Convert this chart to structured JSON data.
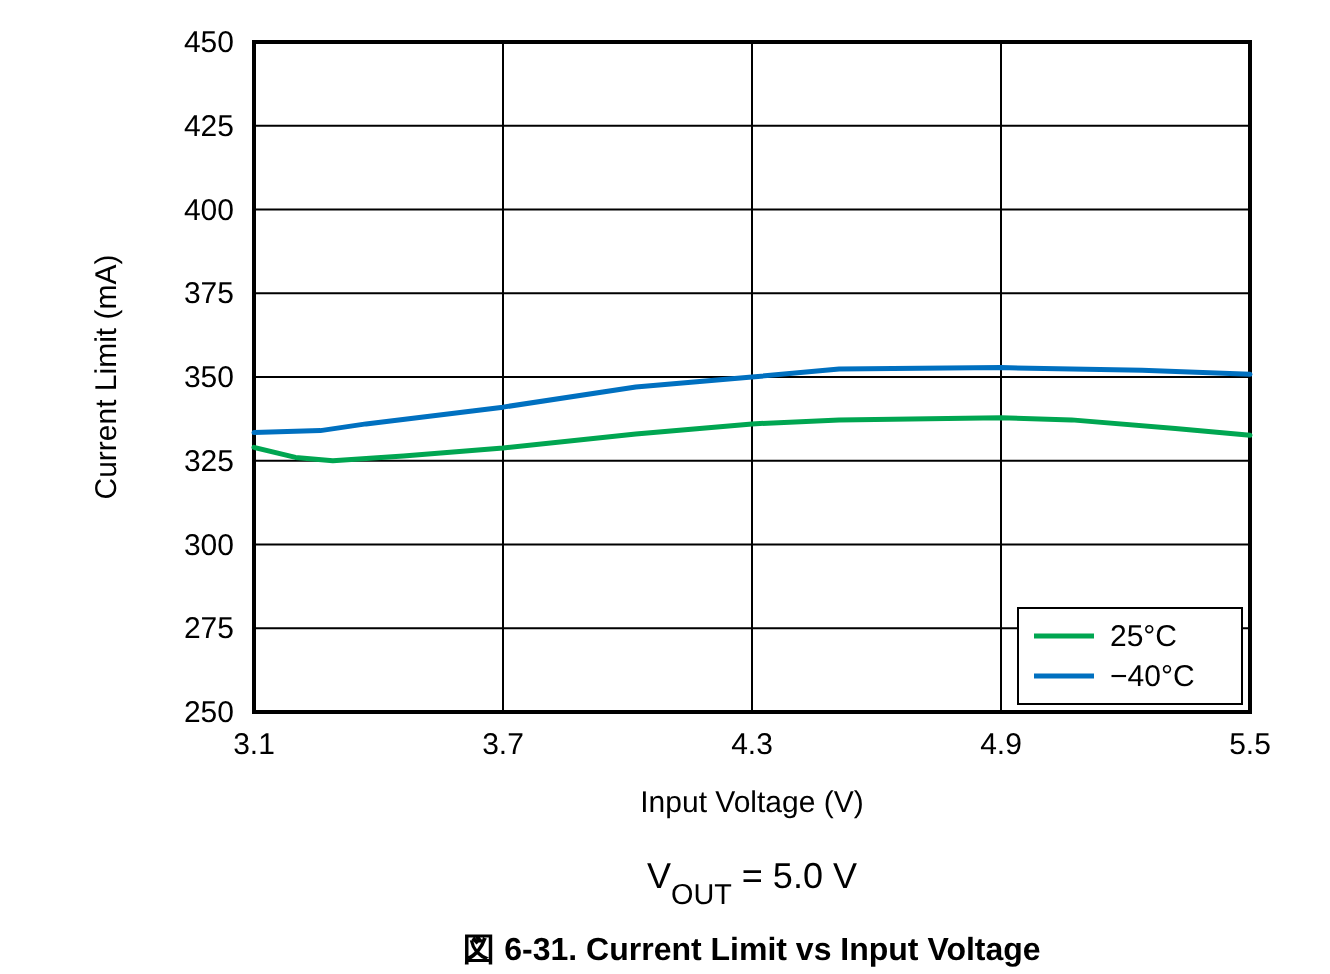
{
  "chart_data": {
    "type": "line",
    "title": "図 6-31. Current Limit vs Input Voltage",
    "xlabel": "Input Voltage (V)",
    "ylabel": "Current Limit (mA)",
    "annotations": [
      "V$_{OUT}$ = 5.0 V"
    ],
    "xlim": [
      3.1,
      5.5
    ],
    "xticks": [
      3.1,
      3.7,
      4.3,
      4.9,
      5.5
    ],
    "ylim": [
      250,
      450
    ],
    "yticks": [
      250,
      275,
      300,
      325,
      350,
      375,
      400,
      425,
      450
    ],
    "grid": true,
    "legend": "bottom right",
    "line_style": "solid",
    "marker": "none",
    "series": [
      {
        "name": "25°C",
        "color": "#00a651",
        "x": [
          3.1,
          3.2,
          3.29,
          3.46,
          3.7,
          4.02,
          4.3,
          4.51,
          4.9,
          5.07,
          5.32,
          5.5
        ],
        "values": [
          329,
          326,
          325,
          326.4,
          328.8,
          333,
          336,
          337.2,
          337.8,
          337.2,
          334.6,
          332.6
        ]
      },
      {
        "name": "−40°C",
        "color": "#0070c0",
        "x": [
          3.1,
          3.26,
          3.37,
          3.7,
          4.02,
          4.3,
          4.51,
          4.9,
          5.24,
          5.5
        ],
        "values": [
          333.4,
          334,
          336,
          341,
          347,
          350,
          352.4,
          352.8,
          352,
          350.8
        ]
      }
    ]
  }
}
